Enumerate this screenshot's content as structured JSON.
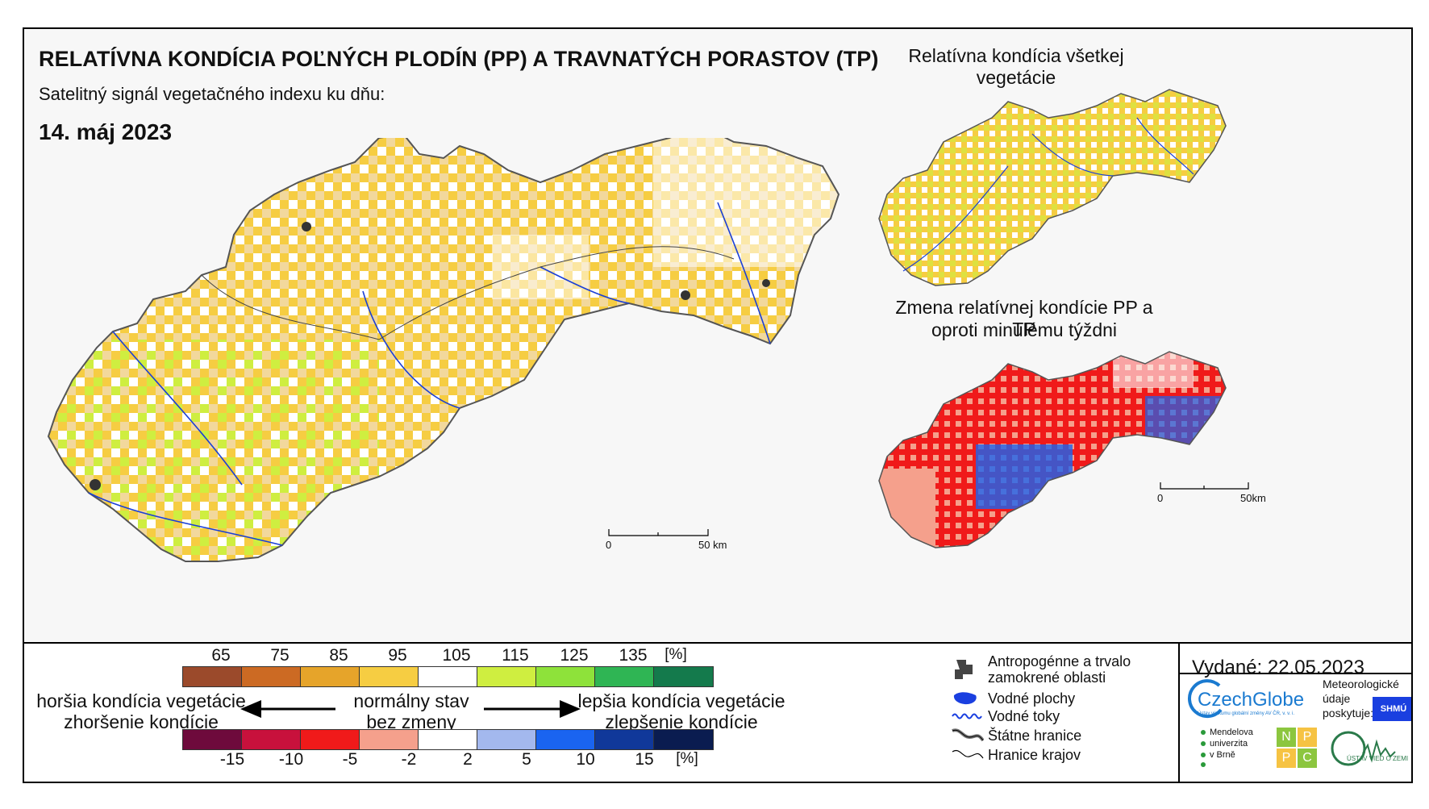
{
  "header": {
    "title": "RELATÍVNA KONDÍCIA POĽNÝCH PLODÍN (PP) A TRAVNATÝCH PORASTOV (TP)",
    "subtitle": "Satelitný signál vegetačného indexu ku dňu:",
    "date": "14. máj 2023"
  },
  "insets": {
    "vegetation_title": "Relatívna kondícia všetkej vegetácie",
    "change_title_line1": "Zmena relatívnej kondície PP a TP",
    "change_title_line2": "oproti minulému týždni"
  },
  "scalebars": {
    "main": {
      "zero": "0",
      "end": "50 km"
    },
    "inset": {
      "zero": "0",
      "end": "50km"
    }
  },
  "legend": {
    "condition_ticks": [
      "65",
      "75",
      "85",
      "95",
      "105",
      "115",
      "125",
      "135",
      "[%]"
    ],
    "condition_colors": [
      "#9b4a2b",
      "#cc6a23",
      "#e6a42a",
      "#f6cd42",
      "#ffffff",
      "#cfee40",
      "#8ee23a",
      "#2fb554",
      "#147a4c"
    ],
    "change_ticks": [
      "-15",
      "-10",
      "-5",
      "-2",
      "2",
      "5",
      "10",
      "15",
      "[%]"
    ],
    "change_colors": [
      "#6e0a3c",
      "#c8113c",
      "#f01a1a",
      "#f5a08c",
      "#ffffff",
      "#a3b8ee",
      "#1a64f0",
      "#10389a",
      "#0a1c50"
    ],
    "worse_line1": "horšia kondícia vegetácie",
    "worse_line2": "zhoršenie kondície",
    "normal_line1": "normálny stav",
    "normal_line2": "bez zmeny",
    "better_line1": "lepšia kondícia vegetácie",
    "better_line2": "zlepšenie kondície"
  },
  "key": {
    "urban_line1": "Antropogénne a trvalo",
    "urban_line2": "zamokrené oblasti",
    "water_bodies": "Vodné plochy",
    "rivers": "Vodné toky",
    "state_border": "Štátne hranice",
    "region_border": "Hranice krajov"
  },
  "footer": {
    "issued": "Vydané: 22.05.2023",
    "czechglobe": "CzechGlobe",
    "czechglobe_sub": "Ústav výzkumu globální změny AV ČR, v. v. i.",
    "meteo_line1": "Meteorologické",
    "meteo_line2": "údaje",
    "meteo_line3": "poskytuje:",
    "shmu": "SHMÚ",
    "mendel_line1": "Mendelova",
    "mendel_line2": "univerzita",
    "mendel_line3": "v Brně",
    "nppc": [
      "N",
      "P",
      "P",
      "C"
    ],
    "uvz": "ÚSTAV VIED O ZEMI"
  }
}
